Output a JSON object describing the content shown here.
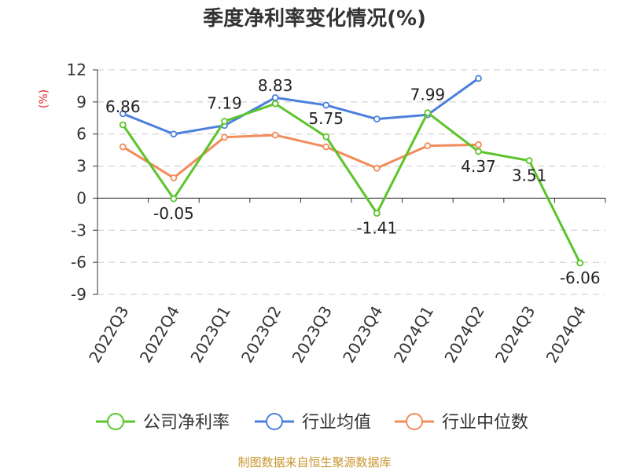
{
  "chart_data": {
    "type": "line",
    "title": "季度净利率变化情况(%)",
    "ylabel": "(%)",
    "ylim": [
      -9,
      12
    ],
    "yticks": [
      12,
      9,
      6,
      3,
      0,
      -3,
      -6,
      -9
    ],
    "grid": true,
    "legend_position": "bottom",
    "categories": [
      "2022Q3",
      "2022Q4",
      "2023Q1",
      "2023Q2",
      "2023Q3",
      "2023Q4",
      "2024Q1",
      "2024Q2",
      "2024Q3",
      "2024Q4"
    ],
    "series": [
      {
        "name": "公司净利率",
        "color": "#5cc42b",
        "values": [
          6.86,
          -0.05,
          7.19,
          8.83,
          5.75,
          -1.41,
          7.99,
          4.37,
          3.51,
          -6.06
        ],
        "labels": [
          "6.86",
          "-0.05",
          "7.19",
          "8.83",
          "5.75",
          "-1.41",
          "7.99",
          "4.37",
          "3.51",
          "-6.06"
        ]
      },
      {
        "name": "行业均值",
        "color": "#4b7fdd",
        "values": [
          7.9,
          6.0,
          6.8,
          9.4,
          8.7,
          7.4,
          7.8,
          11.2,
          null,
          null
        ]
      },
      {
        "name": "行业中位数",
        "color": "#f28c5a",
        "values": [
          4.8,
          1.9,
          5.7,
          5.9,
          4.8,
          2.8,
          4.9,
          5.0,
          null,
          null
        ]
      }
    ]
  },
  "source": "制图数据来自恒生聚源数据库"
}
